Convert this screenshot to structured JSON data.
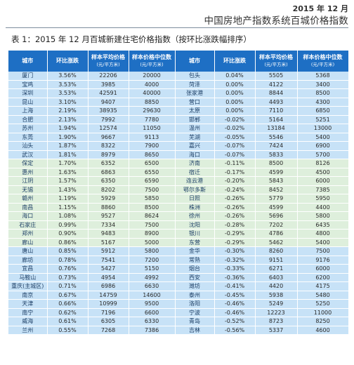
{
  "header": {
    "date": "2015 年 12 月",
    "report_title": "中国房地产指数系统百城价格指数"
  },
  "table": {
    "caption": "表 1：2015 年 12 月百城新建住宅价格指数（按环比涨跌幅排序）",
    "columns": [
      {
        "label": "城市",
        "sub": ""
      },
      {
        "label": "环比涨跌",
        "sub": ""
      },
      {
        "label": "样本平均价格",
        "sub": "(元/平方米)"
      },
      {
        "label": "样本价格中位数",
        "sub": "(元/平方米)"
      },
      {
        "label": "城市",
        "sub": ""
      },
      {
        "label": "环比涨跌",
        "sub": ""
      },
      {
        "label": "样本平均价格",
        "sub": "(元/平方米)"
      },
      {
        "label": "样本价格中位数",
        "sub": "(元/平方米)"
      }
    ],
    "rows": [
      [
        "厦门",
        "3.56%",
        "22206",
        "20000",
        "包头",
        "0.04%",
        "5505",
        "5368"
      ],
      [
        "宝鸡",
        "3.53%",
        "3985",
        "4000",
        "菏泽",
        "0.00%",
        "4122",
        "3400"
      ],
      [
        "深圳",
        "3.53%",
        "42591",
        "40000",
        "张家港",
        "0.00%",
        "8844",
        "8500"
      ],
      [
        "昆山",
        "3.10%",
        "9407",
        "8850",
        "营口",
        "0.00%",
        "4493",
        "4300"
      ],
      [
        "上海",
        "2.19%",
        "38935",
        "29630",
        "太原",
        "0.00%",
        "7110",
        "6850"
      ],
      [
        "合肥",
        "2.13%",
        "7992",
        "7780",
        "邯郸",
        "-0.02%",
        "5164",
        "5251"
      ],
      [
        "苏州",
        "1.94%",
        "12574",
        "11050",
        "温州",
        "-0.02%",
        "13184",
        "13000"
      ],
      [
        "东莞",
        "1.90%",
        "9667",
        "9113",
        "芜湖",
        "-0.05%",
        "5546",
        "5400"
      ],
      [
        "汕头",
        "1.87%",
        "8322",
        "7900",
        "嘉兴",
        "-0.07%",
        "7424",
        "6900"
      ],
      [
        "武汉",
        "1.81%",
        "8979",
        "8650",
        "海口",
        "-0.07%",
        "5833",
        "5700"
      ],
      [
        "保定",
        "1.70%",
        "6352",
        "6500",
        "济南",
        "-0.11%",
        "8500",
        "8126"
      ],
      [
        "惠州",
        "1.63%",
        "6863",
        "6550",
        "宿迁",
        "-0.17%",
        "4599",
        "4500"
      ],
      [
        "江阴",
        "1.57%",
        "6350",
        "6590",
        "连云港",
        "-0.20%",
        "5843",
        "6000"
      ],
      [
        "无锡",
        "1.43%",
        "8202",
        "7500",
        "鄂尔多斯",
        "-0.24%",
        "8452",
        "7385"
      ],
      [
        "赣州",
        "1.19%",
        "5929",
        "5850",
        "日照",
        "-0.26%",
        "5779",
        "5950"
      ],
      [
        "南昌",
        "1.15%",
        "8860",
        "8500",
        "株洲",
        "-0.26%",
        "4599",
        "4400"
      ],
      [
        "海口",
        "1.08%",
        "9527",
        "8624",
        "徐州",
        "-0.26%",
        "5696",
        "5800"
      ],
      [
        "石家庄",
        "0.99%",
        "7334",
        "7500",
        "沈阳",
        "-0.28%",
        "7202",
        "6435"
      ],
      [
        "郑州",
        "0.90%",
        "9483",
        "8900",
        "银川",
        "-0.29%",
        "4786",
        "4800"
      ],
      [
        "廊山",
        "0.86%",
        "5167",
        "5000",
        "东营",
        "-0.29%",
        "5462",
        "5400"
      ],
      [
        "唐山",
        "0.85%",
        "5912",
        "5800",
        "金华",
        "-0.30%",
        "8260",
        "7500"
      ],
      [
        "廊坊",
        "0.78%",
        "7541",
        "7200",
        "常熟",
        "-0.32%",
        "9151",
        "9176"
      ],
      [
        "宜昌",
        "0.76%",
        "5427",
        "5150",
        "烟台",
        "-0.33%",
        "6271",
        "6000"
      ],
      [
        "马鞍山",
        "0.73%",
        "4954",
        "4992",
        "西安",
        "-0.36%",
        "6403",
        "6200"
      ],
      [
        "重庆(主城区)",
        "0.71%",
        "6986",
        "6630",
        "潍坊",
        "-0.41%",
        "4420",
        "4175"
      ],
      [
        "南京",
        "0.67%",
        "14759",
        "14600",
        "泰州",
        "-0.45%",
        "5938",
        "5480"
      ],
      [
        "天津",
        "0.66%",
        "10999",
        "9500",
        "洛阳",
        "-0.46%",
        "5249",
        "5250"
      ],
      [
        "南宁",
        "0.62%",
        "7196",
        "6600",
        "宁波",
        "-0.46%",
        "12223",
        "11000"
      ],
      [
        "威海",
        "0.61%",
        "6305",
        "6330",
        "青岛",
        "-0.52%",
        "8723",
        "8250"
      ],
      [
        "兰州",
        "0.55%",
        "7268",
        "7386",
        "吉林",
        "-0.56%",
        "5337",
        "4600"
      ]
    ],
    "band_colors": {
      "blue": "#c7e2f7",
      "green": "#deefdc"
    },
    "header_color": "#1e6fc4"
  }
}
